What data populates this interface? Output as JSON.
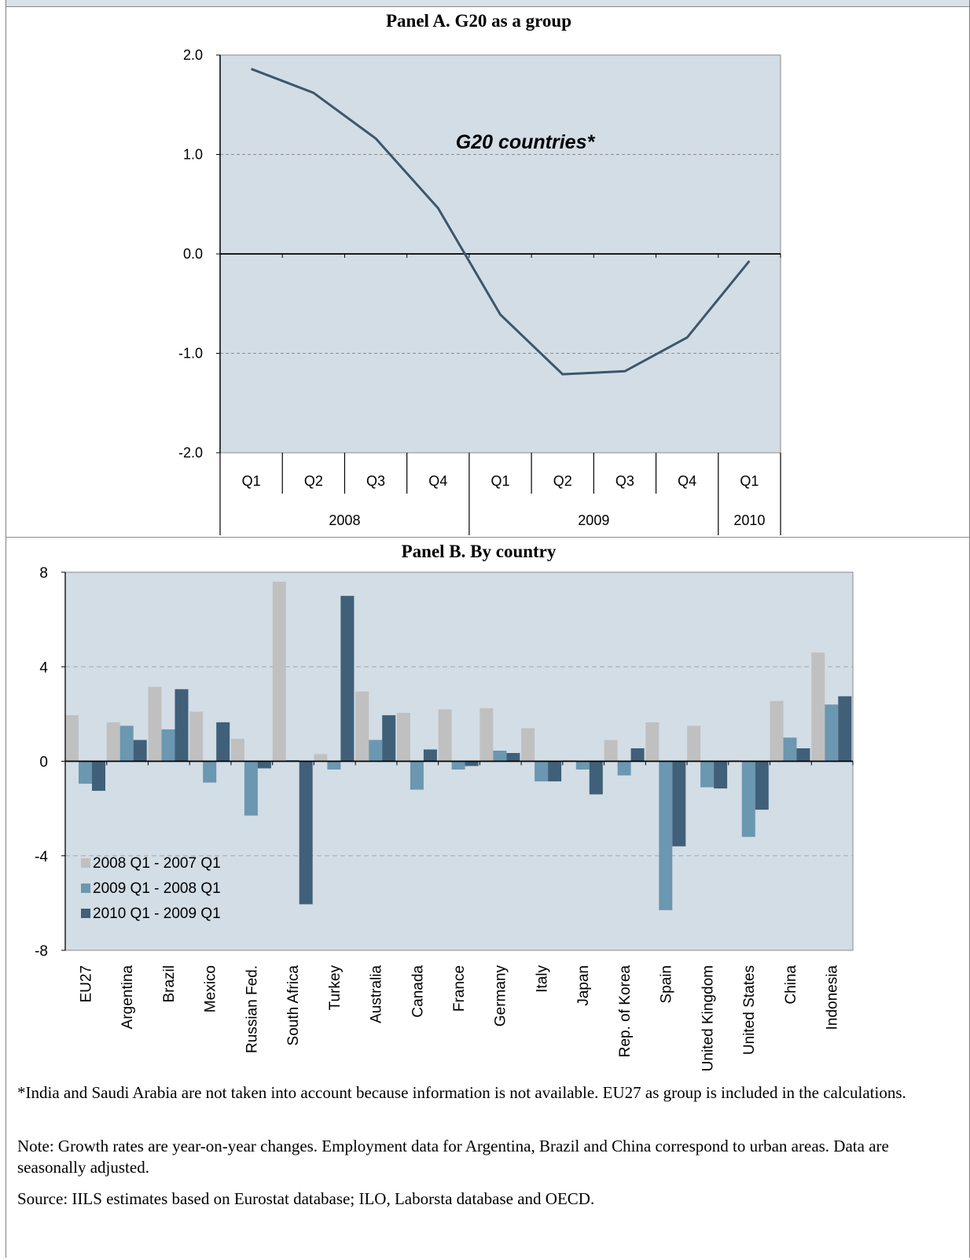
{
  "panel_a": {
    "title": "Panel A. G20 as a group",
    "annotation": "G20  countries*"
  },
  "panel_b": {
    "title": "Panel B. By country"
  },
  "notes": {
    "footnote": "*India and Saudi Arabia are not taken into account because information is not available. EU27 as group is included in the calculations.",
    "note": "Note: Growth rates are year-on-year changes. Employment data for Argentina, Brazil and China correspond to urban areas. Data are seasonally adjusted.",
    "source": "Source: IILS estimates based on Eurostat database; ILO, Laborsta database and OECD."
  },
  "colors": {
    "plot_bg": "#d3dde6",
    "line": "#3f5668",
    "series": [
      "#c0c0c0",
      "#6b97b1",
      "#3f6078"
    ]
  },
  "chart_data": [
    {
      "type": "line",
      "title": "Panel A. G20 as a group",
      "categories": [
        "Q1",
        "Q2",
        "Q3",
        "Q4",
        "Q1",
        "Q2",
        "Q3",
        "Q4",
        "Q1"
      ],
      "year_groups": [
        {
          "label": "2008",
          "span": 4
        },
        {
          "label": "2009",
          "span": 4
        },
        {
          "label": "2010",
          "span": 1
        }
      ],
      "series": [
        {
          "name": "G20  countries*",
          "values": [
            1.86,
            1.62,
            1.16,
            0.46,
            -0.61,
            -1.21,
            -1.18,
            -0.84,
            -0.07
          ]
        }
      ],
      "ylim": [
        -2.0,
        2.0
      ],
      "yticks": [
        "2.0",
        "1.0",
        "0.0",
        "-1.0",
        "-2.0"
      ],
      "ytick_values": [
        2.0,
        1.0,
        0.0,
        -1.0,
        -2.0
      ],
      "grid": true
    },
    {
      "type": "bar",
      "title": "Panel B. By country",
      "categories": [
        "EU27",
        "Argentina",
        "Brazil",
        "Mexico",
        "Russian Fed.",
        "South Africa",
        "Turkey",
        "Australia",
        "Canada",
        "France",
        "Germany",
        "Italy",
        "Japan",
        "Rep. of Korea",
        "Spain",
        "United Kingdom",
        "United States",
        "China",
        "Indonesia"
      ],
      "series": [
        {
          "name": "2008 Q1 - 2007 Q1",
          "values": [
            1.95,
            1.65,
            3.15,
            2.1,
            0.95,
            7.6,
            0.3,
            2.95,
            2.05,
            2.2,
            2.25,
            1.4,
            0.05,
            0.9,
            1.65,
            1.5,
            0.05,
            2.55,
            4.6
          ]
        },
        {
          "name": "2009 Q1 - 2008 Q1",
          "values": [
            -0.95,
            1.5,
            1.35,
            -0.9,
            -2.3,
            0.05,
            -0.35,
            0.9,
            -1.2,
            -0.35,
            0.45,
            -0.85,
            -0.35,
            -0.6,
            -6.3,
            -1.1,
            -3.2,
            1.0,
            2.4
          ]
        },
        {
          "name": "2010 Q1 - 2009 Q1",
          "values": [
            -1.25,
            0.9,
            3.05,
            1.65,
            -0.3,
            -6.05,
            7.0,
            1.95,
            0.5,
            -0.2,
            0.35,
            -0.85,
            -1.4,
            0.55,
            -3.6,
            -1.15,
            -2.05,
            0.55,
            2.75
          ]
        }
      ],
      "ylim": [
        -8,
        8
      ],
      "yticks": [
        "8",
        "4",
        "0",
        "-4",
        "-8"
      ],
      "ytick_values": [
        8,
        4,
        0,
        -4,
        -8
      ],
      "legend_position": "bottom-left inside",
      "grid": true
    }
  ]
}
